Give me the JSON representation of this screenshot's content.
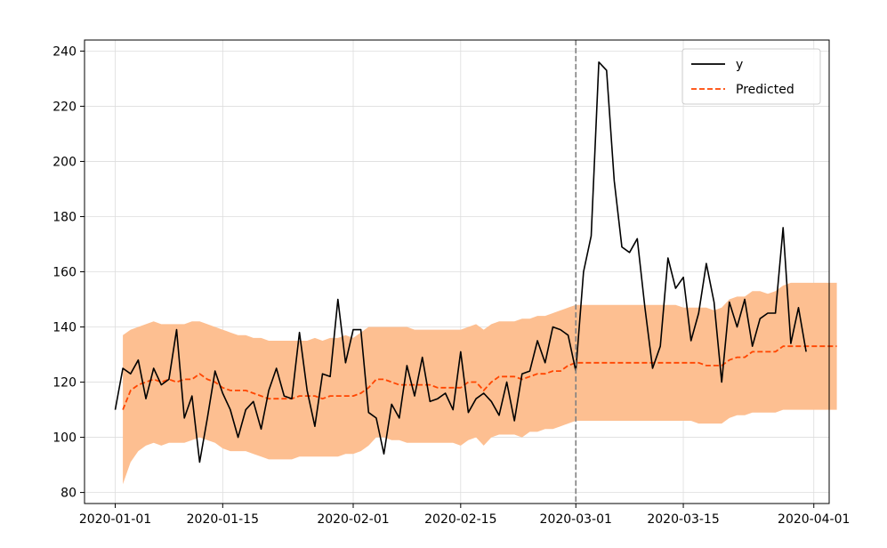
{
  "chart_data": {
    "type": "line",
    "x_type": "date",
    "xlim": [
      "2019-12-28",
      "2020-04-03"
    ],
    "ylim": [
      76,
      244
    ],
    "x_ticks": [
      "2020-01-01",
      "2020-01-15",
      "2020-02-01",
      "2020-02-15",
      "2020-03-01",
      "2020-03-15",
      "2020-04-01"
    ],
    "y_ticks": [
      80,
      100,
      120,
      140,
      160,
      180,
      200,
      220,
      240
    ],
    "x_tick_labels": [
      "2020-01-01",
      "2020-01-15",
      "2020-02-01",
      "2020-02-15",
      "2020-03-01",
      "2020-03-15",
      "2020-04-01"
    ],
    "y_tick_labels": [
      "80",
      "100",
      "120",
      "140",
      "160",
      "180",
      "200",
      "220",
      "240"
    ],
    "grid": true,
    "legend_position": "top-right",
    "vline": {
      "x": "2020-03-01",
      "color": "#808080",
      "style": "dashed"
    },
    "series": [
      {
        "name": "y",
        "color": "#000000",
        "style": "solid",
        "start": "2020-01-01",
        "values": [
          110,
          125,
          123,
          128,
          114,
          125,
          119,
          121,
          139,
          107,
          115,
          91,
          107,
          124,
          116,
          110,
          100,
          110,
          113,
          103,
          117,
          125,
          115,
          114,
          138,
          117,
          104,
          123,
          122,
          150,
          127,
          139,
          139,
          109,
          107,
          94,
          112,
          107,
          126,
          115,
          129,
          113,
          114,
          116,
          110,
          131,
          109,
          114,
          116,
          113,
          108,
          120,
          106,
          123,
          124,
          135,
          127,
          140,
          139,
          137,
          124,
          160,
          173,
          236,
          233,
          193,
          169,
          167,
          172,
          147,
          125,
          133,
          165,
          154,
          158,
          135,
          145,
          163,
          149,
          120,
          149,
          140,
          150,
          133,
          143,
          145,
          145,
          176,
          134,
          147,
          131
        ]
      },
      {
        "name": "Predicted",
        "color": "#ff4500",
        "style": "dashed",
        "start": "2020-01-02",
        "values": [
          110,
          117,
          119,
          120,
          121,
          120,
          121,
          120,
          121,
          121,
          123,
          121,
          120,
          118,
          117,
          117,
          117,
          116,
          115,
          114,
          114,
          114,
          114,
          115,
          115,
          115,
          114,
          115,
          115,
          115,
          115,
          116,
          118,
          121,
          121,
          120,
          119,
          119,
          119,
          119,
          119,
          118,
          118,
          118,
          118,
          120,
          120,
          117,
          120,
          122,
          122,
          122,
          121,
          122,
          123,
          123,
          124,
          124,
          126,
          127,
          127,
          127,
          127,
          127,
          127,
          127,
          127,
          127,
          127,
          127,
          127,
          127,
          127,
          127,
          127,
          127,
          126,
          126,
          126,
          128,
          129,
          129,
          131,
          131,
          131,
          131,
          133,
          133,
          133,
          133,
          133,
          133,
          133,
          133
        ]
      }
    ],
    "band": {
      "color": "#fdbf91",
      "start": "2020-01-02",
      "upper": [
        137,
        139,
        140,
        141,
        142,
        141,
        141,
        141,
        141,
        142,
        142,
        141,
        140,
        139,
        138,
        137,
        137,
        136,
        136,
        135,
        135,
        135,
        135,
        135,
        135,
        136,
        135,
        136,
        136,
        137,
        136,
        138,
        140,
        140,
        140,
        140,
        140,
        140,
        139,
        139,
        139,
        139,
        139,
        139,
        139,
        140,
        141,
        139,
        141,
        142,
        142,
        142,
        143,
        143,
        144,
        144,
        145,
        146,
        147,
        148,
        148,
        148,
        148,
        148,
        148,
        148,
        148,
        148,
        148,
        148,
        148,
        148,
        148,
        147,
        147,
        147,
        147,
        146,
        147,
        150,
        151,
        151,
        153,
        153,
        152,
        153,
        155,
        156,
        156,
        156,
        156,
        156,
        156,
        156
      ],
      "lower": [
        83,
        91,
        95,
        97,
        98,
        97,
        98,
        98,
        98,
        99,
        100,
        99,
        98,
        96,
        95,
        95,
        95,
        94,
        93,
        92,
        92,
        92,
        92,
        93,
        93,
        93,
        93,
        93,
        93,
        94,
        94,
        95,
        97,
        100,
        100,
        99,
        99,
        98,
        98,
        98,
        98,
        98,
        98,
        98,
        97,
        99,
        100,
        97,
        100,
        101,
        101,
        101,
        100,
        102,
        102,
        103,
        103,
        104,
        105,
        106,
        106,
        106,
        106,
        106,
        106,
        106,
        106,
        106,
        106,
        106,
        106,
        106,
        106,
        106,
        106,
        105,
        105,
        105,
        105,
        107,
        108,
        108,
        109,
        109,
        109,
        109,
        110,
        110,
        110,
        110,
        110,
        110,
        110,
        110
      ]
    }
  }
}
